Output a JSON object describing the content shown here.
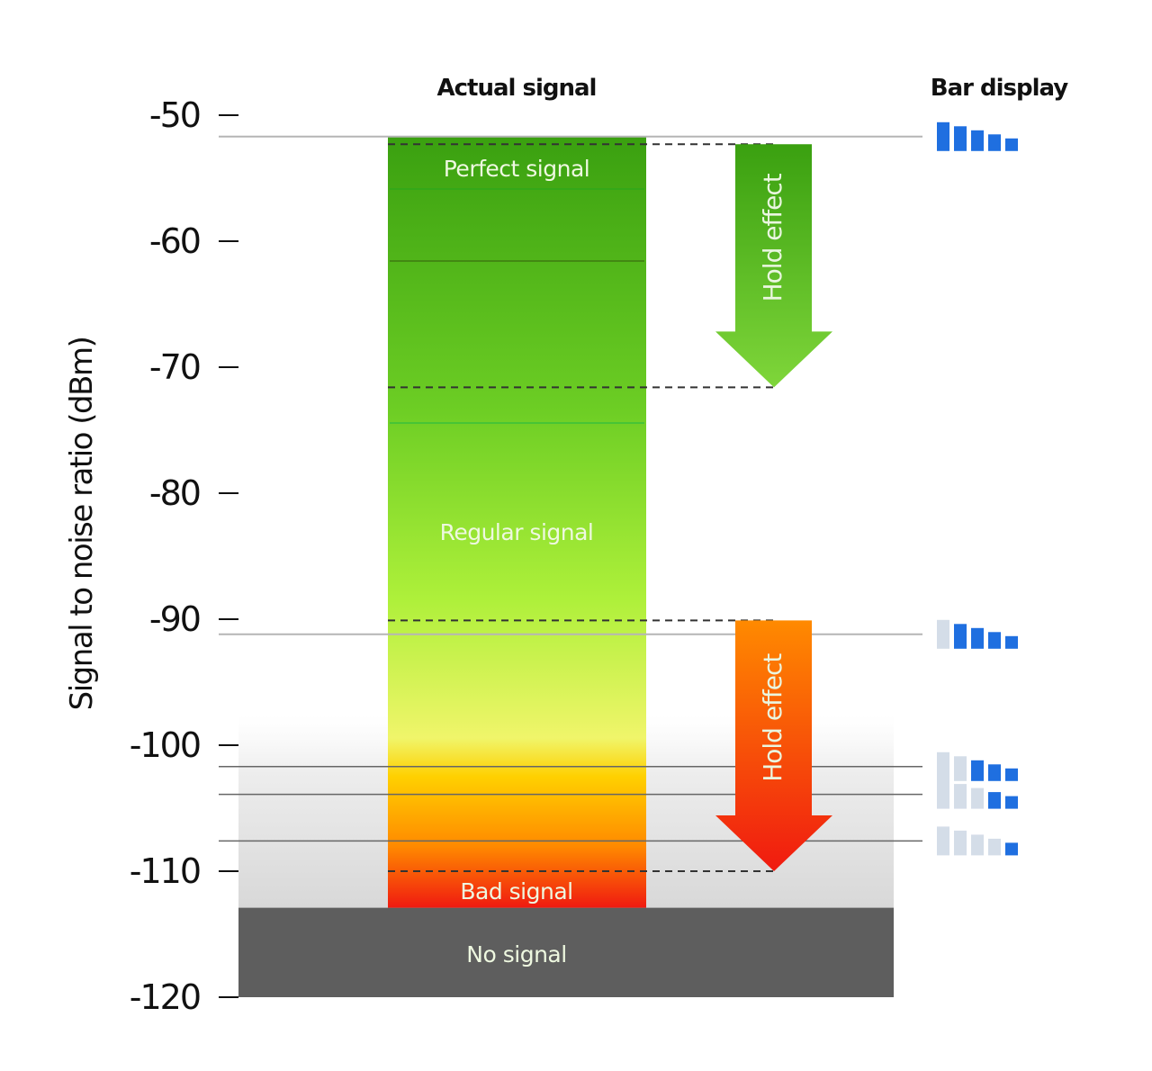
{
  "chart_data": {
    "type": "diagram",
    "ylabel": "Signal to noise ratio (dBm)",
    "ylim": [
      -120,
      -50
    ],
    "yticks": [
      -50,
      -60,
      -70,
      -80,
      -90,
      -100,
      -110,
      -120
    ],
    "headers": {
      "actual": "Actual signal",
      "bars": "Bar display"
    },
    "zones": [
      {
        "label": "Perfect signal",
        "value_dbm": -54
      },
      {
        "label": "Regular signal",
        "value_dbm": -83
      },
      {
        "label": "Bad signal",
        "value_dbm": -111.5
      },
      {
        "label": "No signal",
        "value_dbm": -117
      }
    ],
    "signal_bar": {
      "top_dbm": -51.7,
      "bottom_dbm": -112.9
    },
    "no_signal_range": [
      -120,
      -112.9
    ],
    "hold_arrows": [
      {
        "label": "Hold effect",
        "from_dbm": -52.3,
        "to_dbm": -71.6,
        "color": "#4db31a"
      },
      {
        "label": "Hold effect",
        "from_dbm": -90.1,
        "to_dbm": -110,
        "color": "#f04a10"
      }
    ],
    "bar_display_levels": [
      {
        "threshold_dbm": -51.7,
        "bars": 5
      },
      {
        "threshold_dbm": -91.2,
        "bars": 4
      },
      {
        "threshold_dbm": -101.7,
        "bars": 3
      },
      {
        "threshold_dbm": -103.9,
        "bars": 2
      },
      {
        "threshold_dbm": -107.6,
        "bars": 1
      }
    ],
    "colors": {
      "bar_active": "#1f6fe0",
      "bar_inactive": "#d4dde8"
    }
  }
}
